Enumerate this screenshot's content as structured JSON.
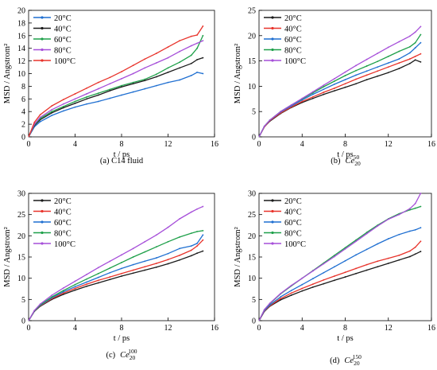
{
  "series_colors": {
    "20°C": "#1a1a1a",
    "40°C": "#e8332b",
    "60°C": "#1f6fd1",
    "80°C": "#1fa04a",
    "100°C": "#a64fd9"
  },
  "chart_data": [
    {
      "type": "line",
      "caption": "(a) C14 fluid",
      "caption_plain": "(a) C14 fluid",
      "caption_italic": "",
      "caption_sub": "",
      "caption_sup": "",
      "xlabel": "t / ps",
      "ylabel": "MSD / Angstrom²",
      "xlim": [
        0,
        16
      ],
      "ylim": [
        0,
        20
      ],
      "xticks": [
        0,
        4,
        8,
        12,
        16
      ],
      "yticks": [
        0,
        2,
        4,
        6,
        8,
        10,
        12,
        14,
        16,
        18,
        20
      ],
      "x": [
        0,
        0.5,
        1,
        2,
        3,
        4,
        5,
        6,
        7,
        8,
        9,
        10,
        11,
        12,
        13,
        14,
        14.5,
        15
      ],
      "legend_position": "top-left",
      "legend_order": [
        "20°C",
        "40°C",
        "60°C",
        "80°C",
        "100°C"
      ],
      "series": [
        {
          "name": "20°C",
          "color": "#1f6fd1",
          "values": [
            0,
            1.6,
            2.4,
            3.4,
            4.1,
            4.7,
            5.2,
            5.6,
            6.1,
            6.6,
            7.1,
            7.6,
            8.1,
            8.6,
            9.0,
            9.7,
            10.2,
            10.0
          ]
        },
        {
          "name": "40°C",
          "color": "#1a1a1a",
          "values": [
            0,
            1.8,
            2.7,
            3.8,
            4.6,
            5.3,
            6.0,
            6.6,
            7.3,
            7.9,
            8.4,
            8.9,
            9.5,
            10.2,
            10.9,
            11.6,
            12.2,
            12.5
          ]
        },
        {
          "name": "60°C",
          "color": "#1fa04a",
          "values": [
            0,
            1.9,
            2.9,
            4.0,
            4.8,
            5.6,
            6.3,
            6.9,
            7.5,
            8.1,
            8.6,
            9.1,
            9.9,
            10.9,
            11.8,
            12.9,
            14.0,
            16.0
          ]
        },
        {
          "name": "80°C",
          "color": "#a64fd9",
          "values": [
            0,
            2.0,
            3.1,
            4.3,
            5.2,
            6.0,
            6.8,
            7.6,
            8.4,
            9.2,
            10.0,
            10.9,
            11.7,
            12.5,
            13.5,
            14.4,
            14.8,
            15.2
          ]
        },
        {
          "name": "100°C",
          "color": "#e8332b",
          "values": [
            0,
            2.3,
            3.5,
            4.9,
            5.9,
            6.8,
            7.7,
            8.6,
            9.4,
            10.3,
            11.3,
            12.3,
            13.2,
            14.2,
            15.2,
            15.9,
            16.1,
            17.5
          ]
        }
      ]
    },
    {
      "type": "line",
      "caption": "(b) Ce2050",
      "caption_plain": "(b)",
      "caption_italic": "Ce",
      "caption_sub": "20",
      "caption_sup": "50",
      "xlabel": "t / ps",
      "ylabel": "MSD / Angstrom²",
      "xlim": [
        0,
        16
      ],
      "ylim": [
        0,
        25
      ],
      "xticks": [
        0,
        4,
        8,
        12,
        16
      ],
      "yticks": [
        0,
        5,
        10,
        15,
        20,
        25
      ],
      "x": [
        0,
        0.5,
        1,
        2,
        3,
        4,
        5,
        6,
        7,
        8,
        9,
        10,
        11,
        12,
        13,
        14,
        14.5,
        15
      ],
      "legend_position": "top-left",
      "legend_order": [
        "20°C",
        "40°C",
        "60°C",
        "80°C",
        "100°C"
      ],
      "series": [
        {
          "name": "20°C",
          "color": "#1a1a1a",
          "values": [
            0,
            2.0,
            3.1,
            4.6,
            5.8,
            6.8,
            7.6,
            8.4,
            9.1,
            9.8,
            10.5,
            11.3,
            12.0,
            12.7,
            13.5,
            14.5,
            15.2,
            14.8
          ]
        },
        {
          "name": "40°C",
          "color": "#e8332b",
          "values": [
            0,
            2.0,
            3.2,
            4.7,
            5.9,
            7.0,
            7.9,
            8.8,
            9.6,
            10.5,
            11.4,
            12.2,
            13.0,
            13.8,
            14.6,
            15.4,
            15.9,
            16.4
          ]
        },
        {
          "name": "60°C",
          "color": "#1f6fd1",
          "values": [
            0,
            2.1,
            3.3,
            4.9,
            6.1,
            7.3,
            8.4,
            9.4,
            10.4,
            11.3,
            12.2,
            13.0,
            13.8,
            14.6,
            15.4,
            16.6,
            17.6,
            18.6
          ]
        },
        {
          "name": "80°C",
          "color": "#1fa04a",
          "values": [
            0,
            2.1,
            3.3,
            5.0,
            6.3,
            7.5,
            8.7,
            9.9,
            11.0,
            12.1,
            13.1,
            14.0,
            14.9,
            15.9,
            16.9,
            17.8,
            18.6,
            20.2
          ]
        },
        {
          "name": "100°C",
          "color": "#a64fd9",
          "values": [
            0,
            2.1,
            3.3,
            5.0,
            6.3,
            7.6,
            8.9,
            10.2,
            11.5,
            12.8,
            14.1,
            15.3,
            16.5,
            17.7,
            18.8,
            19.9,
            20.7,
            21.8
          ]
        }
      ]
    },
    {
      "type": "line",
      "caption": "(c) Ce20100",
      "caption_plain": "(c)",
      "caption_italic": "Ce",
      "caption_sub": "20",
      "caption_sup": "100",
      "xlabel": "t / ps",
      "ylabel": "MSD / Angstrom²",
      "xlim": [
        0,
        16
      ],
      "ylim": [
        0,
        30
      ],
      "xticks": [
        0,
        4,
        8,
        12,
        16
      ],
      "yticks": [
        0,
        5,
        10,
        15,
        20,
        25,
        30
      ],
      "x": [
        0,
        0.5,
        1,
        2,
        3,
        4,
        5,
        6,
        7,
        8,
        9,
        10,
        11,
        12,
        13,
        14,
        14.5,
        15
      ],
      "legend_position": "top-left",
      "legend_order": [
        "20°C",
        "40°C",
        "60°C",
        "80°C",
        "100°C"
      ],
      "series": [
        {
          "name": "20°C",
          "color": "#1a1a1a",
          "values": [
            0,
            2.2,
            3.4,
            5.0,
            6.2,
            7.2,
            8.1,
            8.9,
            9.7,
            10.5,
            11.2,
            11.9,
            12.6,
            13.4,
            14.3,
            15.3,
            15.9,
            16.4
          ]
        },
        {
          "name": "40°C",
          "color": "#e8332b",
          "values": [
            0,
            2.3,
            3.5,
            5.2,
            6.5,
            7.6,
            8.6,
            9.5,
            10.3,
            11.1,
            11.9,
            12.7,
            13.5,
            14.4,
            15.4,
            16.6,
            17.6,
            19.0
          ]
        },
        {
          "name": "60°C",
          "color": "#1f6fd1",
          "values": [
            0,
            2.3,
            3.6,
            5.4,
            6.8,
            8.0,
            9.1,
            10.2,
            11.3,
            12.3,
            13.2,
            14.0,
            14.8,
            15.8,
            17.0,
            17.6,
            18.2,
            20.2
          ]
        },
        {
          "name": "80°C",
          "color": "#1fa04a",
          "values": [
            0,
            2.3,
            3.7,
            5.6,
            7.1,
            8.5,
            9.8,
            11.1,
            12.4,
            13.7,
            15.0,
            16.2,
            17.4,
            18.6,
            19.7,
            20.6,
            21.0,
            21.2
          ]
        },
        {
          "name": "100°C",
          "color": "#a64fd9",
          "values": [
            0,
            2.4,
            3.9,
            6.0,
            7.7,
            9.3,
            10.9,
            12.5,
            14.0,
            15.5,
            17.0,
            18.6,
            20.2,
            22.0,
            24.0,
            25.6,
            26.3,
            26.9
          ]
        }
      ]
    },
    {
      "type": "line",
      "caption": "(d) Ce20150",
      "caption_plain": "(d)",
      "caption_italic": "Ce",
      "caption_sub": "20",
      "caption_sup": "150",
      "xlabel": "t / ps",
      "ylabel": "MSD / Angstrom²",
      "xlim": [
        0,
        16
      ],
      "ylim": [
        0,
        30
      ],
      "xticks": [
        0,
        4,
        8,
        12,
        16
      ],
      "yticks": [
        0,
        5,
        10,
        15,
        20,
        25,
        30
      ],
      "x": [
        0,
        0.5,
        1,
        2,
        3,
        4,
        5,
        6,
        7,
        8,
        9,
        10,
        11,
        12,
        13,
        14,
        14.5,
        15
      ],
      "legend_position": "top-left",
      "legend_order": [
        "20°C",
        "40°C",
        "60°C",
        "80°C",
        "100°C"
      ],
      "series": [
        {
          "name": "20°C",
          "color": "#1a1a1a",
          "values": [
            0,
            2.2,
            3.4,
            4.9,
            6.0,
            7.0,
            7.9,
            8.7,
            9.5,
            10.3,
            11.1,
            11.9,
            12.7,
            13.5,
            14.3,
            15.1,
            15.7,
            16.3
          ]
        },
        {
          "name": "40°C",
          "color": "#e8332b",
          "values": [
            0,
            2.3,
            3.5,
            5.2,
            6.5,
            7.6,
            8.6,
            9.6,
            10.5,
            11.4,
            12.3,
            13.2,
            14.0,
            14.7,
            15.4,
            16.4,
            17.3,
            18.7
          ]
        },
        {
          "name": "60°C",
          "color": "#1f6fd1",
          "values": [
            0,
            2.4,
            3.7,
            5.6,
            7.1,
            8.5,
            9.9,
            11.3,
            12.7,
            14.1,
            15.5,
            16.8,
            18.1,
            19.3,
            20.3,
            21.1,
            21.4,
            21.9
          ]
        },
        {
          "name": "80°C",
          "color": "#1fa04a",
          "values": [
            0,
            2.6,
            4.0,
            6.3,
            8.2,
            10.0,
            11.8,
            13.6,
            15.4,
            17.2,
            19.0,
            20.8,
            22.5,
            24.0,
            25.2,
            26.1,
            26.5,
            26.9
          ]
        },
        {
          "name": "100°C",
          "color": "#a64fd9",
          "values": [
            0,
            2.6,
            4.1,
            6.4,
            8.3,
            10.0,
            11.7,
            13.4,
            15.1,
            16.9,
            18.7,
            20.5,
            22.3,
            23.9,
            25.0,
            26.4,
            27.6,
            30.0
          ]
        }
      ]
    }
  ]
}
